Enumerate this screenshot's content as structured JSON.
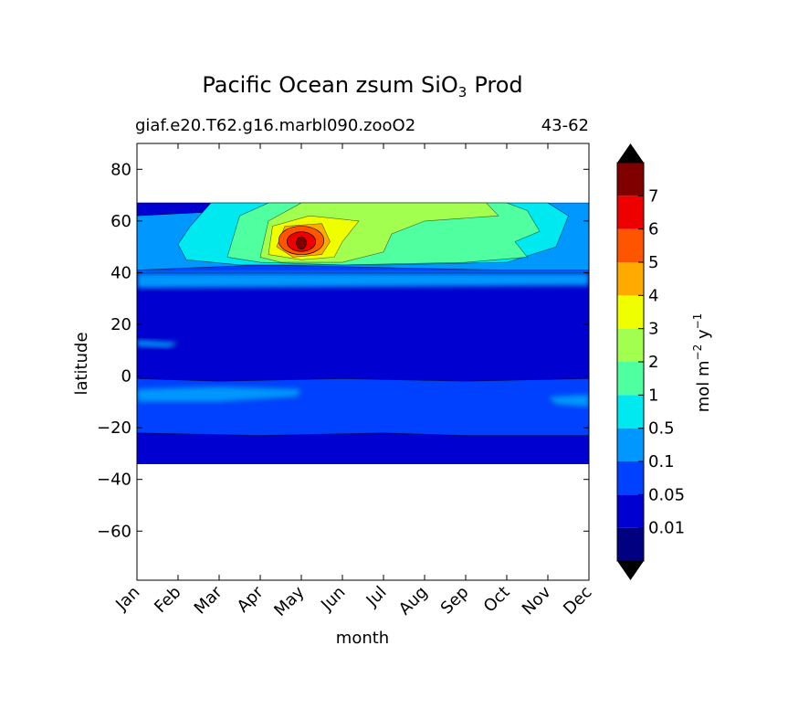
{
  "chart_data": {
    "type": "contourf",
    "title": "Pacific Ocean zsum SiO",
    "title_subscript": "3",
    "title_suffix": "Prod",
    "subtitle_left": "giaf.e20.T62.g16.marbl090.zooO2",
    "subtitle_right": "43-62",
    "xlabel": "month",
    "ylabel": "latitude",
    "x_ticks": [
      "Jan",
      "Feb",
      "Mar",
      "Apr",
      "May",
      "Jun",
      "Jul",
      "Aug",
      "Sep",
      "Oct",
      "Nov",
      "Dec"
    ],
    "y_ticks": [
      80,
      60,
      40,
      20,
      0,
      -20,
      -40,
      -60
    ],
    "y_tick_labels": [
      "80",
      "60",
      "40",
      "20",
      "0",
      "−20",
      "−40",
      "−60"
    ],
    "xlim": [
      0,
      11
    ],
    "ylim": [
      -79,
      90
    ],
    "data_lat_range": [
      -34,
      67
    ],
    "levels": [
      0,
      0.01,
      0.05,
      0.1,
      0.5,
      1,
      2,
      3,
      4,
      5,
      6,
      7,
      8
    ],
    "level_colors": [
      "#000080",
      "#0000d0",
      "#0040ff",
      "#0098ff",
      "#00e8f0",
      "#50ff9f",
      "#a2ff50",
      "#f0ff00",
      "#ffaa00",
      "#ff5500",
      "#ee0000",
      "#800000"
    ],
    "extend_colors": {
      "under": "#000000",
      "over": "#000000"
    },
    "colorbar": {
      "tick_labels": [
        "0.01",
        "0.05",
        "0.1",
        "0.5",
        "1",
        "2",
        "3",
        "4",
        "5",
        "6",
        "7"
      ],
      "label": "mol m",
      "label_exp1": "−2",
      "label_mid": " y",
      "label_exp2": "−1"
    },
    "approx_regions": [
      {
        "desc": "background band",
        "lat": [
          -34,
          40
        ],
        "months": [
          0,
          11
        ],
        "level": "0.05-0.1"
      },
      {
        "desc": "northern band",
        "lat": [
          40,
          67
        ],
        "months": [
          0,
          11
        ],
        "level": "0.5-1"
      },
      {
        "desc": "spring bloom peak",
        "lat": [
          49,
          55
        ],
        "months": [
          3.8,
          4.1
        ],
        "level": ">7"
      }
    ]
  }
}
